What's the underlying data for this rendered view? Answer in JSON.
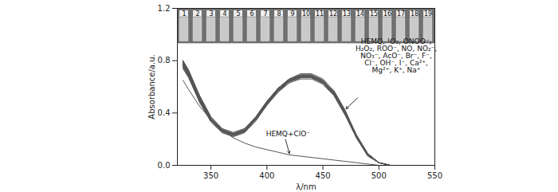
{
  "chart_data": {
    "type": "line",
    "x_label": "λ/nm",
    "y_label": "Absorbance/a.u.",
    "xlim": [
      320,
      550
    ],
    "xticks": [
      350,
      400,
      450,
      500,
      550
    ],
    "ylim": [
      0,
      1.2
    ],
    "yticks": [
      {
        "value": 0,
        "label": "0.0"
      },
      {
        "value": 0.4,
        "label": "0.4"
      },
      {
        "value": 0.8,
        "label": "0.8"
      },
      {
        "value": 1.2,
        "label": "1.2"
      }
    ],
    "grid": false,
    "inset_labels": [
      "1",
      "2",
      "3",
      "4",
      "5",
      "6",
      "7",
      "8",
      "9",
      "10",
      "11",
      "12",
      "13",
      "14",
      "15",
      "16",
      "17",
      "18",
      "19"
    ],
    "annotations": [
      {
        "text": [
          "HEMQ, ¹O₂, ONOO⁻,",
          "H₂O₂, ROO⁻, NO, NO₂⁻,",
          "NO₃⁻, AcO⁻, Br⁻, F⁻,",
          "Cl⁻, OH⁻, I⁻, Ca²⁺,",
          "Mg²⁺, K⁺, Na⁺"
        ]
      },
      {
        "text": [
          "HEMQ+ClO⁻"
        ]
      }
    ],
    "x": [
      325,
      330,
      340,
      350,
      360,
      370,
      380,
      390,
      400,
      410,
      420,
      430,
      440,
      450,
      460,
      470,
      480,
      490,
      500,
      510,
      520,
      550
    ],
    "series": [
      {
        "name": "HEMQ",
        "color": "#555555",
        "values": [
          0.8,
          0.72,
          0.52,
          0.36,
          0.27,
          0.24,
          0.27,
          0.36,
          0.48,
          0.58,
          0.65,
          0.68,
          0.68,
          0.64,
          0.55,
          0.4,
          0.22,
          0.08,
          0.02,
          0.0,
          0.0,
          0.0
        ]
      },
      {
        "name": "¹O₂",
        "color": "#555555",
        "values": [
          0.78,
          0.7,
          0.5,
          0.35,
          0.26,
          0.23,
          0.26,
          0.35,
          0.47,
          0.57,
          0.64,
          0.67,
          0.67,
          0.63,
          0.54,
          0.39,
          0.21,
          0.08,
          0.02,
          0.0,
          0.0,
          0.0
        ]
      },
      {
        "name": "ONOO⁻",
        "color": "#555555",
        "values": [
          0.76,
          0.69,
          0.49,
          0.34,
          0.26,
          0.23,
          0.26,
          0.35,
          0.47,
          0.57,
          0.64,
          0.67,
          0.67,
          0.63,
          0.54,
          0.39,
          0.22,
          0.08,
          0.02,
          0.0,
          0.0,
          0.0
        ]
      },
      {
        "name": "H₂O₂",
        "color": "#555555",
        "values": [
          0.79,
          0.71,
          0.51,
          0.36,
          0.27,
          0.24,
          0.27,
          0.36,
          0.48,
          0.58,
          0.66,
          0.69,
          0.69,
          0.65,
          0.56,
          0.41,
          0.23,
          0.09,
          0.02,
          0.0,
          0.0,
          0.0
        ]
      },
      {
        "name": "ROO⁻",
        "color": "#555555",
        "values": [
          0.77,
          0.7,
          0.5,
          0.35,
          0.27,
          0.24,
          0.27,
          0.36,
          0.48,
          0.58,
          0.65,
          0.68,
          0.68,
          0.64,
          0.55,
          0.4,
          0.22,
          0.08,
          0.02,
          0.0,
          0.0,
          0.0
        ]
      },
      {
        "name": "NO",
        "color": "#555555",
        "values": [
          0.75,
          0.68,
          0.48,
          0.33,
          0.25,
          0.22,
          0.25,
          0.34,
          0.46,
          0.56,
          0.63,
          0.66,
          0.66,
          0.62,
          0.53,
          0.38,
          0.21,
          0.07,
          0.02,
          0.0,
          0.0,
          0.0
        ]
      },
      {
        "name": "NO₂⁻",
        "color": "#555555",
        "values": [
          0.8,
          0.73,
          0.53,
          0.37,
          0.28,
          0.25,
          0.28,
          0.37,
          0.49,
          0.59,
          0.66,
          0.69,
          0.69,
          0.65,
          0.56,
          0.41,
          0.23,
          0.09,
          0.02,
          0.0,
          0.0,
          0.0
        ]
      },
      {
        "name": "NO₃⁻",
        "color": "#555555",
        "values": [
          0.78,
          0.71,
          0.51,
          0.35,
          0.26,
          0.23,
          0.26,
          0.35,
          0.47,
          0.57,
          0.65,
          0.68,
          0.68,
          0.64,
          0.55,
          0.4,
          0.22,
          0.08,
          0.02,
          0.0,
          0.0,
          0.0
        ]
      },
      {
        "name": "AcO⁻",
        "color": "#555555",
        "values": [
          0.74,
          0.67,
          0.48,
          0.34,
          0.26,
          0.23,
          0.26,
          0.35,
          0.47,
          0.57,
          0.64,
          0.67,
          0.67,
          0.63,
          0.54,
          0.39,
          0.21,
          0.08,
          0.02,
          0.0,
          0.0,
          0.0
        ]
      },
      {
        "name": "Br⁻",
        "color": "#555555",
        "values": [
          0.79,
          0.72,
          0.52,
          0.36,
          0.27,
          0.24,
          0.27,
          0.36,
          0.48,
          0.59,
          0.66,
          0.7,
          0.7,
          0.66,
          0.57,
          0.42,
          0.23,
          0.09,
          0.02,
          0.0,
          0.0,
          0.0
        ]
      },
      {
        "name": "F⁻",
        "color": "#555555",
        "values": [
          0.77,
          0.69,
          0.5,
          0.35,
          0.26,
          0.23,
          0.26,
          0.35,
          0.47,
          0.57,
          0.64,
          0.67,
          0.67,
          0.63,
          0.54,
          0.39,
          0.22,
          0.08,
          0.02,
          0.0,
          0.0,
          0.0
        ]
      },
      {
        "name": "Cl⁻",
        "color": "#555555",
        "values": [
          0.76,
          0.69,
          0.49,
          0.34,
          0.25,
          0.22,
          0.25,
          0.34,
          0.46,
          0.56,
          0.64,
          0.67,
          0.67,
          0.63,
          0.54,
          0.39,
          0.21,
          0.08,
          0.02,
          0.0,
          0.0,
          0.0
        ]
      },
      {
        "name": "OH⁻",
        "color": "#555555",
        "values": [
          0.8,
          0.72,
          0.53,
          0.37,
          0.28,
          0.25,
          0.28,
          0.37,
          0.49,
          0.59,
          0.66,
          0.69,
          0.69,
          0.65,
          0.56,
          0.41,
          0.22,
          0.08,
          0.02,
          0.0,
          0.0,
          0.0
        ]
      },
      {
        "name": "I⁻",
        "color": "#555555",
        "values": [
          0.78,
          0.7,
          0.51,
          0.35,
          0.27,
          0.24,
          0.27,
          0.36,
          0.48,
          0.58,
          0.65,
          0.68,
          0.68,
          0.64,
          0.55,
          0.4,
          0.22,
          0.08,
          0.02,
          0.0,
          0.0,
          0.0
        ]
      },
      {
        "name": "Ca²⁺",
        "color": "#555555",
        "values": [
          0.75,
          0.68,
          0.49,
          0.34,
          0.26,
          0.23,
          0.26,
          0.35,
          0.47,
          0.57,
          0.65,
          0.68,
          0.68,
          0.64,
          0.55,
          0.4,
          0.22,
          0.08,
          0.02,
          0.0,
          0.0,
          0.0
        ]
      },
      {
        "name": "Mg²⁺",
        "color": "#555555",
        "values": [
          0.79,
          0.71,
          0.52,
          0.36,
          0.27,
          0.24,
          0.27,
          0.36,
          0.48,
          0.58,
          0.65,
          0.69,
          0.69,
          0.65,
          0.56,
          0.41,
          0.23,
          0.09,
          0.02,
          0.0,
          0.0,
          0.0
        ]
      },
      {
        "name": "K⁺",
        "color": "#555555",
        "values": [
          0.77,
          0.7,
          0.5,
          0.35,
          0.26,
          0.23,
          0.26,
          0.35,
          0.47,
          0.57,
          0.64,
          0.67,
          0.67,
          0.63,
          0.54,
          0.39,
          0.21,
          0.08,
          0.02,
          0.0,
          0.0,
          0.0
        ]
      },
      {
        "name": "Na⁺",
        "color": "#555555",
        "values": [
          0.76,
          0.69,
          0.5,
          0.35,
          0.27,
          0.24,
          0.27,
          0.36,
          0.48,
          0.58,
          0.65,
          0.68,
          0.68,
          0.64,
          0.55,
          0.4,
          0.22,
          0.08,
          0.02,
          0.0,
          0.0,
          0.0
        ]
      },
      {
        "name": "HEMQ+ClO⁻",
        "color": "#555555",
        "values": [
          0.65,
          0.58,
          0.45,
          0.35,
          0.27,
          0.21,
          0.17,
          0.14,
          0.12,
          0.1,
          0.08,
          0.07,
          0.06,
          0.05,
          0.04,
          0.03,
          0.02,
          0.01,
          0.0,
          0.0,
          0.0,
          0.0
        ]
      }
    ]
  }
}
